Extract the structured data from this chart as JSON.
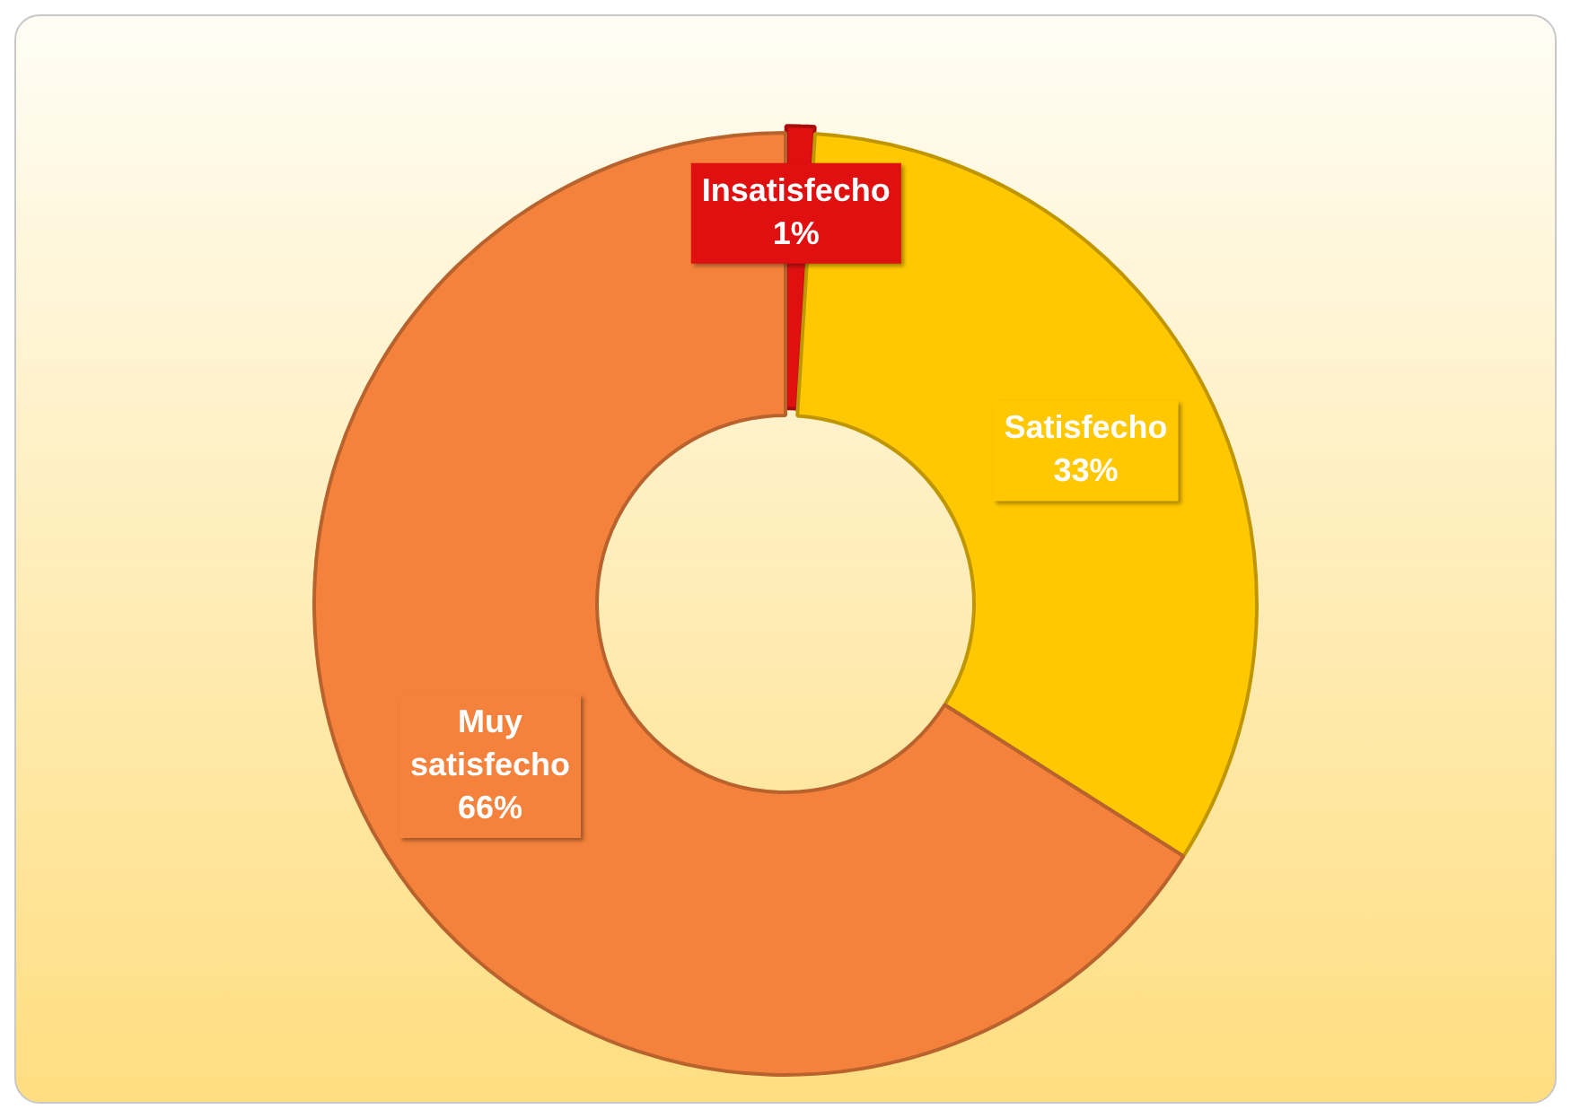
{
  "chart_data": {
    "type": "donut",
    "categories": [
      "Insatisfecho",
      "Satisfecho",
      "Muy satisfecho"
    ],
    "values": [
      1,
      33,
      66
    ],
    "colors": [
      "#e01010",
      "#ffc800",
      "#f5823c"
    ],
    "value_labels": [
      "1%",
      "33%",
      "66%"
    ],
    "legend": false
  }
}
